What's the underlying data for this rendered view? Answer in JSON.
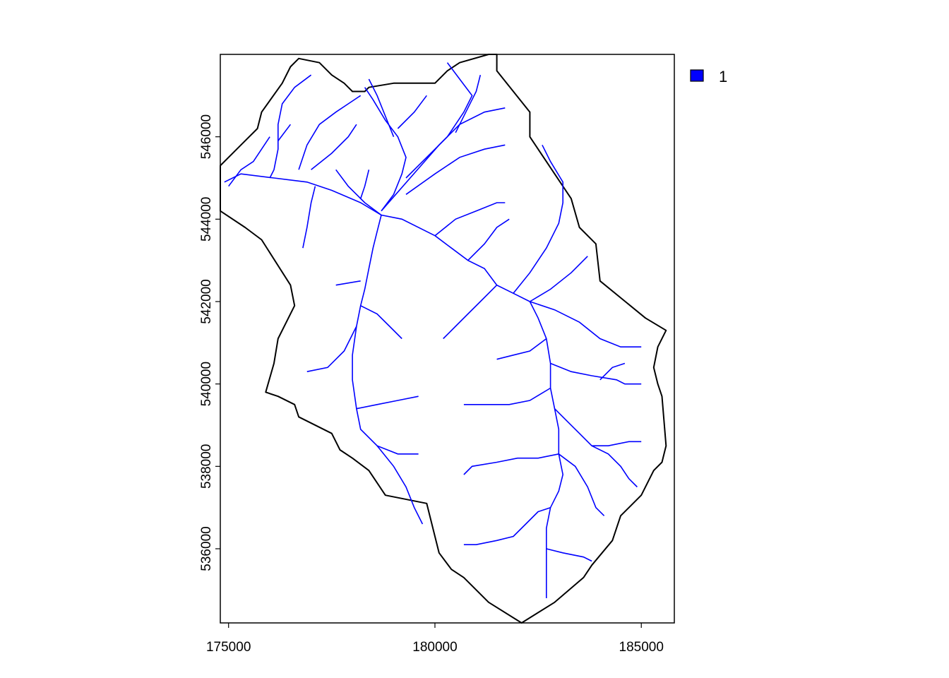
{
  "chart_data": {
    "type": "map",
    "title": "",
    "xlabel": "",
    "ylabel": "",
    "xlim": [
      174800,
      185800
    ],
    "ylim": [
      534200,
      548000
    ],
    "x_ticks": [
      "175000",
      "180000",
      "185000"
    ],
    "x_tick_values": [
      175000,
      180000,
      185000
    ],
    "y_ticks": [
      "536000",
      "538000",
      "540000",
      "542000",
      "544000",
      "546000"
    ],
    "y_tick_values": [
      536000,
      538000,
      540000,
      542000,
      544000,
      546000
    ],
    "grid": false,
    "legend": {
      "placement": "top-right-outside",
      "entries": [
        {
          "label": "1",
          "color": "#0000ff"
        }
      ]
    },
    "colors": {
      "stream": "#0000ff",
      "boundary": "#000000",
      "frame": "#000000"
    },
    "boundary": [
      [
        174800,
        545300
      ],
      [
        175300,
        545800
      ],
      [
        175700,
        546200
      ],
      [
        175800,
        546600
      ],
      [
        176300,
        547300
      ],
      [
        176500,
        547700
      ],
      [
        176700,
        547900
      ],
      [
        177200,
        547800
      ],
      [
        177500,
        547500
      ],
      [
        177800,
        547300
      ],
      [
        178000,
        547100
      ],
      [
        178300,
        547100
      ],
      [
        178400,
        547200
      ],
      [
        179000,
        547300
      ],
      [
        180000,
        547300
      ],
      [
        180300,
        547600
      ],
      [
        180600,
        547800
      ],
      [
        181300,
        548000
      ],
      [
        181500,
        548000
      ],
      [
        181500,
        547600
      ],
      [
        182300,
        546600
      ],
      [
        182300,
        546000
      ],
      [
        182500,
        545700
      ],
      [
        182700,
        545400
      ],
      [
        182900,
        545100
      ],
      [
        183300,
        544500
      ],
      [
        183500,
        543800
      ],
      [
        183900,
        543400
      ],
      [
        184000,
        542500
      ],
      [
        185100,
        541600
      ],
      [
        185600,
        541300
      ],
      [
        185400,
        540900
      ],
      [
        185300,
        540400
      ],
      [
        185400,
        540000
      ],
      [
        185500,
        539700
      ],
      [
        185600,
        538500
      ],
      [
        185500,
        538100
      ],
      [
        185300,
        537900
      ],
      [
        185000,
        537300
      ],
      [
        184700,
        537000
      ],
      [
        184500,
        536800
      ],
      [
        184300,
        536200
      ],
      [
        183800,
        535600
      ],
      [
        183600,
        535300
      ],
      [
        182900,
        534700
      ],
      [
        182100,
        534200
      ],
      [
        181300,
        534700
      ],
      [
        180700,
        535300
      ],
      [
        180400,
        535500
      ],
      [
        180100,
        535900
      ],
      [
        179800,
        537100
      ],
      [
        178800,
        537300
      ],
      [
        178400,
        537900
      ],
      [
        178000,
        538200
      ],
      [
        177700,
        538400
      ],
      [
        177500,
        538800
      ],
      [
        176700,
        539200
      ],
      [
        176600,
        539500
      ],
      [
        176200,
        539700
      ],
      [
        175900,
        539800
      ],
      [
        176100,
        540500
      ],
      [
        176200,
        541100
      ],
      [
        176400,
        541500
      ],
      [
        176600,
        541900
      ],
      [
        176500,
        542400
      ],
      [
        175800,
        543500
      ],
      [
        175400,
        543800
      ],
      [
        174800,
        544200
      ]
    ],
    "streams": [
      [
        [
          174900,
          544900
        ],
        [
          175300,
          545100
        ],
        [
          176100,
          545000
        ],
        [
          176900,
          544900
        ],
        [
          177500,
          544700
        ],
        [
          178200,
          544400
        ],
        [
          178700,
          544100
        ],
        [
          179200,
          544000
        ],
        [
          180000,
          543600
        ]
      ],
      [
        [
          175000,
          544800
        ],
        [
          175300,
          545200
        ],
        [
          175600,
          545400
        ],
        [
          176000,
          546000
        ]
      ],
      [
        [
          176000,
          545000
        ],
        [
          176100,
          545200
        ],
        [
          176200,
          545700
        ],
        [
          176200,
          546300
        ],
        [
          176300,
          546800
        ],
        [
          176600,
          547200
        ],
        [
          177000,
          547500
        ]
      ],
      [
        [
          176200,
          545900
        ],
        [
          176500,
          546300
        ]
      ],
      [
        [
          177000,
          545200
        ],
        [
          177500,
          545600
        ],
        [
          177900,
          546000
        ],
        [
          178100,
          546300
        ]
      ],
      [
        [
          176700,
          545200
        ],
        [
          176900,
          545800
        ],
        [
          177200,
          546300
        ],
        [
          177600,
          546600
        ],
        [
          177900,
          546800
        ],
        [
          178200,
          547000
        ]
      ],
      [
        [
          177100,
          544800
        ],
        [
          177000,
          544400
        ],
        [
          176900,
          543800
        ],
        [
          176800,
          543300
        ]
      ],
      [
        [
          178200,
          544500
        ],
        [
          178300,
          544800
        ],
        [
          178400,
          545200
        ]
      ],
      [
        [
          178700,
          544100
        ],
        [
          178600,
          543700
        ],
        [
          178500,
          543300
        ],
        [
          178400,
          542800
        ],
        [
          178300,
          542300
        ],
        [
          178200,
          541900
        ],
        [
          178100,
          541400
        ],
        [
          178000,
          540700
        ],
        [
          178000,
          540100
        ],
        [
          178100,
          539400
        ],
        [
          178200,
          538900
        ],
        [
          178600,
          538500
        ],
        [
          179000,
          538000
        ],
        [
          179300,
          537500
        ],
        [
          179500,
          537000
        ],
        [
          179700,
          536600
        ]
      ],
      [
        [
          178700,
          544100
        ],
        [
          178300,
          544400
        ],
        [
          177900,
          544800
        ],
        [
          177600,
          545200
        ]
      ],
      [
        [
          178700,
          544200
        ],
        [
          179000,
          544600
        ],
        [
          179200,
          545100
        ],
        [
          179300,
          545500
        ],
        [
          179100,
          546000
        ],
        [
          178800,
          546400
        ],
        [
          178500,
          546900
        ],
        [
          178300,
          547200
        ]
      ],
      [
        [
          179000,
          546000
        ],
        [
          178800,
          546500
        ],
        [
          178600,
          547000
        ],
        [
          178400,
          547400
        ]
      ],
      [
        [
          179100,
          546200
        ],
        [
          179500,
          546600
        ],
        [
          179800,
          547000
        ]
      ],
      [
        [
          178700,
          544200
        ],
        [
          179400,
          545000
        ],
        [
          180100,
          545800
        ],
        [
          180600,
          546300
        ],
        [
          181200,
          546600
        ],
        [
          181700,
          546700
        ]
      ],
      [
        [
          179300,
          545000
        ],
        [
          179800,
          545500
        ],
        [
          180300,
          546000
        ],
        [
          180700,
          546600
        ],
        [
          180900,
          547000
        ],
        [
          180600,
          547400
        ],
        [
          180300,
          547800
        ]
      ],
      [
        [
          180500,
          546100
        ],
        [
          180800,
          546700
        ],
        [
          181000,
          547100
        ],
        [
          181100,
          547500
        ]
      ],
      [
        [
          179300,
          544600
        ],
        [
          180000,
          545100
        ],
        [
          180600,
          545500
        ],
        [
          181200,
          545700
        ],
        [
          181700,
          545800
        ]
      ],
      [
        [
          180000,
          543600
        ],
        [
          180400,
          543300
        ],
        [
          180800,
          543000
        ],
        [
          181200,
          542800
        ],
        [
          181500,
          542400
        ],
        [
          181900,
          542200
        ],
        [
          182300,
          542000
        ],
        [
          182500,
          541600
        ],
        [
          182700,
          541100
        ],
        [
          182800,
          540500
        ],
        [
          182800,
          539900
        ],
        [
          182900,
          539400
        ],
        [
          183000,
          538900
        ],
        [
          183000,
          538300
        ],
        [
          183100,
          537800
        ],
        [
          183000,
          537400
        ],
        [
          182800,
          537000
        ],
        [
          182700,
          536500
        ],
        [
          182700,
          535900
        ],
        [
          182700,
          535300
        ],
        [
          182700,
          534800
        ]
      ],
      [
        [
          180000,
          543600
        ],
        [
          180500,
          544000
        ],
        [
          181000,
          544200
        ],
        [
          181500,
          544400
        ],
        [
          181700,
          544400
        ]
      ],
      [
        [
          180800,
          543000
        ],
        [
          181200,
          543400
        ],
        [
          181500,
          543800
        ],
        [
          181800,
          544000
        ]
      ],
      [
        [
          181500,
          542400
        ],
        [
          181100,
          542000
        ],
        [
          180800,
          541700
        ],
        [
          180500,
          541400
        ],
        [
          180200,
          541100
        ]
      ],
      [
        [
          181900,
          542200
        ],
        [
          182300,
          542700
        ],
        [
          182700,
          543300
        ],
        [
          183000,
          543900
        ],
        [
          183100,
          544400
        ],
        [
          183100,
          544900
        ],
        [
          182800,
          545400
        ],
        [
          182600,
          545800
        ]
      ],
      [
        [
          182300,
          542000
        ],
        [
          182800,
          542300
        ],
        [
          183300,
          542700
        ],
        [
          183700,
          543100
        ]
      ],
      [
        [
          182300,
          542000
        ],
        [
          182900,
          541800
        ],
        [
          183500,
          541500
        ],
        [
          184000,
          541100
        ],
        [
          184500,
          540900
        ],
        [
          185000,
          540900
        ]
      ],
      [
        [
          182700,
          541100
        ],
        [
          182300,
          540800
        ],
        [
          181900,
          540700
        ],
        [
          181500,
          540600
        ]
      ],
      [
        [
          178200,
          541900
        ],
        [
          178600,
          541700
        ],
        [
          178900,
          541400
        ],
        [
          179200,
          541100
        ]
      ],
      [
        [
          178100,
          541400
        ],
        [
          177800,
          540800
        ],
        [
          177400,
          540400
        ],
        [
          176900,
          540300
        ]
      ],
      [
        [
          178200,
          542500
        ],
        [
          177600,
          542400
        ]
      ],
      [
        [
          178100,
          539400
        ],
        [
          178600,
          539500
        ],
        [
          179100,
          539600
        ],
        [
          179600,
          539700
        ]
      ],
      [
        [
          178600,
          538500
        ],
        [
          179100,
          538300
        ],
        [
          179600,
          538300
        ]
      ],
      [
        [
          182800,
          540500
        ],
        [
          183300,
          540300
        ],
        [
          183800,
          540200
        ],
        [
          184400,
          540100
        ],
        [
          184600,
          540000
        ],
        [
          185000,
          540000
        ]
      ],
      [
        [
          184000,
          540100
        ],
        [
          184300,
          540400
        ],
        [
          184600,
          540500
        ]
      ],
      [
        [
          182800,
          539900
        ],
        [
          182300,
          539600
        ],
        [
          181800,
          539500
        ],
        [
          181300,
          539500
        ],
        [
          180700,
          539500
        ]
      ],
      [
        [
          182900,
          539400
        ],
        [
          183200,
          539100
        ],
        [
          183500,
          538800
        ],
        [
          183800,
          538500
        ],
        [
          184200,
          538300
        ],
        [
          184500,
          538000
        ],
        [
          184700,
          537700
        ],
        [
          184900,
          537500
        ]
      ],
      [
        [
          183800,
          538500
        ],
        [
          184200,
          538500
        ],
        [
          184700,
          538600
        ],
        [
          185000,
          538600
        ]
      ],
      [
        [
          183000,
          538300
        ],
        [
          182500,
          538200
        ],
        [
          182000,
          538200
        ],
        [
          181500,
          538100
        ],
        [
          180900,
          538000
        ],
        [
          180700,
          537800
        ]
      ],
      [
        [
          183000,
          538300
        ],
        [
          183400,
          538000
        ],
        [
          183700,
          537500
        ],
        [
          183900,
          537000
        ],
        [
          184100,
          536800
        ]
      ],
      [
        [
          182800,
          537000
        ],
        [
          182500,
          536900
        ],
        [
          182200,
          536600
        ],
        [
          181900,
          536300
        ],
        [
          181500,
          536200
        ],
        [
          181000,
          536100
        ],
        [
          180700,
          536100
        ]
      ],
      [
        [
          182700,
          536000
        ],
        [
          183100,
          535900
        ],
        [
          183600,
          535800
        ],
        [
          183800,
          535700
        ]
      ]
    ]
  }
}
